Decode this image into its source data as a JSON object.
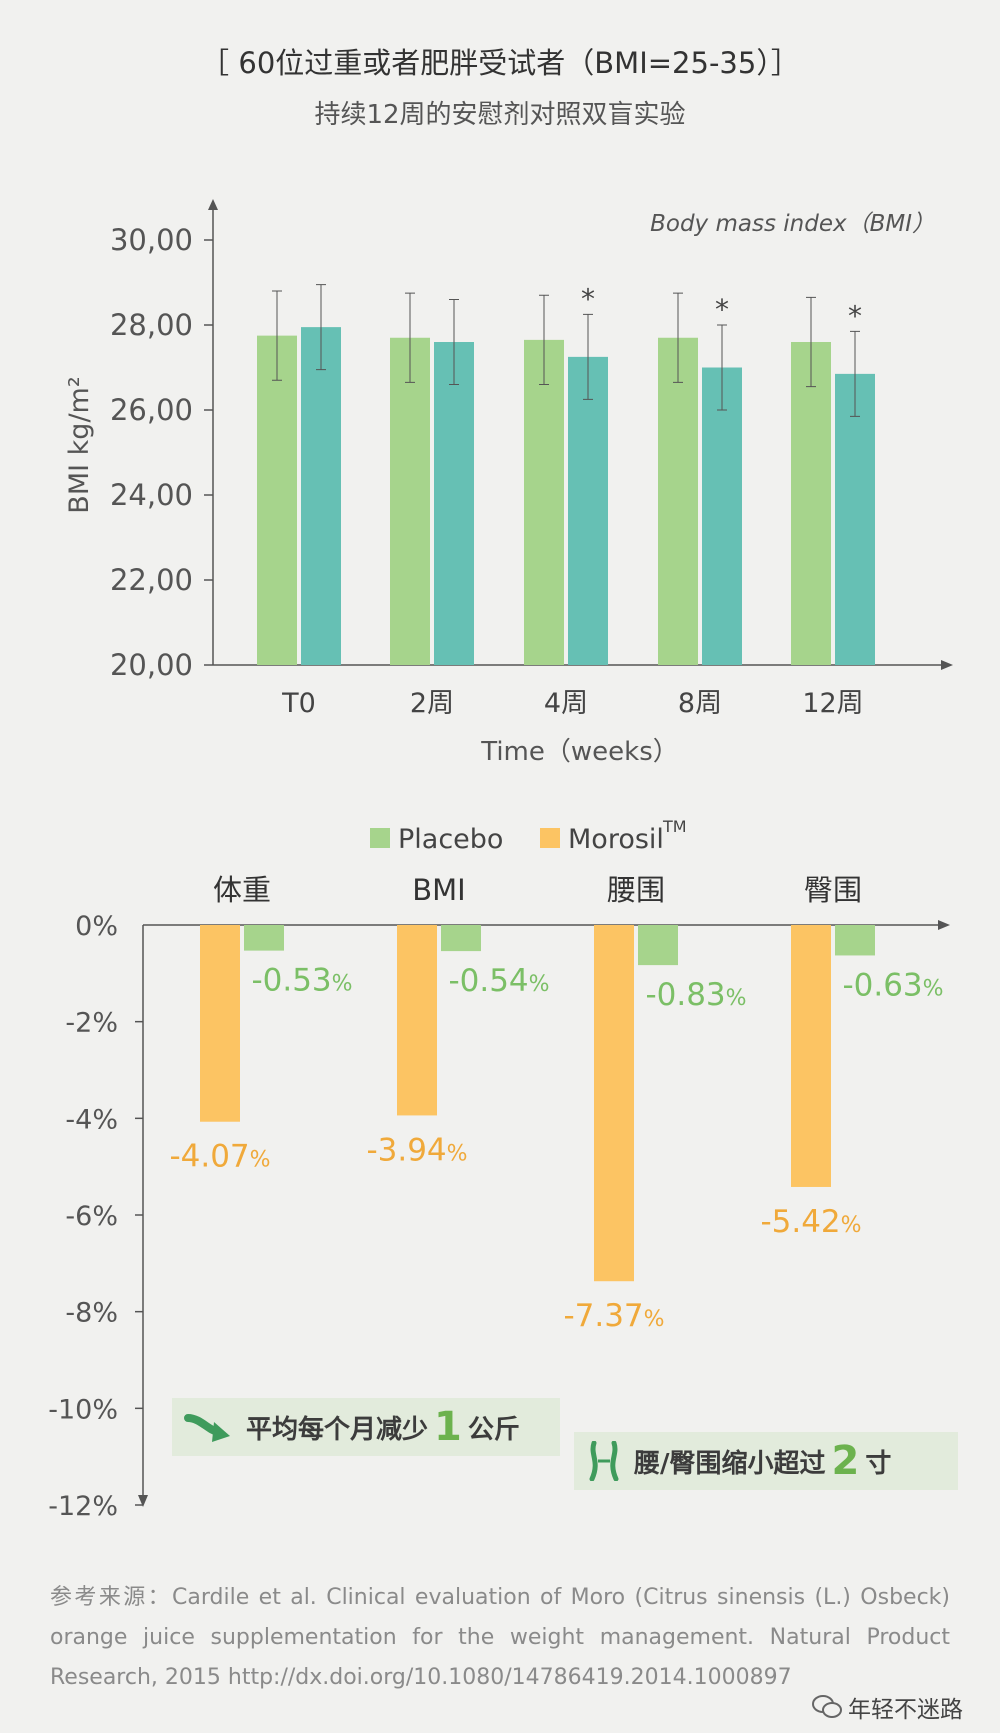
{
  "header": {
    "title": "［ 60位过重或者肥胖受试者（BMI=25-35）］",
    "subtitle": "持续12周的安慰剂对照双盲实验"
  },
  "chart_data": [
    {
      "type": "bar",
      "title": "Body mass index（BMI）",
      "ylabel": "BMI kg/m²",
      "xlabel": "Time（weeks）",
      "categories": [
        "T0",
        "2周",
        "4周",
        "8周",
        "12周"
      ],
      "ylim": [
        20,
        30
      ],
      "yticks": [
        "20,00",
        "22,00",
        "24,00",
        "26,00",
        "28,00",
        "30,00"
      ],
      "series": [
        {
          "values": [
            27.75,
            27.7,
            27.65,
            27.7,
            27.6
          ],
          "errors": [
            1.05,
            1.05,
            1.05,
            1.05,
            1.05
          ],
          "color": "#a6d48c"
        },
        {
          "values": [
            27.95,
            27.6,
            27.25,
            27.0,
            26.85
          ],
          "errors": [
            1.0,
            1.0,
            1.0,
            1.0,
            1.0
          ],
          "color": "#66c0b4"
        }
      ],
      "significance": [
        "",
        "",
        "*",
        "*",
        "*"
      ],
      "grid": false
    },
    {
      "type": "bar",
      "categories": [
        "体重",
        "BMI",
        "腰围",
        "臀围"
      ],
      "ylim": [
        -12,
        0
      ],
      "yticks": [
        "0%",
        "-2%",
        "-4%",
        "-6%",
        "-8%",
        "-10%",
        "-12%"
      ],
      "legend_position": "top",
      "series": [
        {
          "name": "Morosil™",
          "values": [
            -4.07,
            -3.94,
            -7.37,
            -5.42
          ],
          "labels": [
            "-4.07",
            "-3.94",
            "-7.37",
            "-5.42"
          ],
          "color": "#fcc463"
        },
        {
          "name": "Placebo",
          "values": [
            -0.53,
            -0.54,
            -0.83,
            -0.63
          ],
          "labels": [
            "-0.53",
            "-0.54",
            "-0.83",
            "-0.63"
          ],
          "color": "#a6d48c"
        }
      ],
      "grid": false
    }
  ],
  "legend": {
    "placebo": "Placebo",
    "morosil": "Morosil",
    "morosil_tm": "TM"
  },
  "percent_sign": "%",
  "callouts": [
    {
      "text": "平均每个月减少",
      "value": "1",
      "unit": "公斤"
    },
    {
      "text": "腰/臀围缩小超过",
      "value": "2",
      "unit": "寸"
    }
  ],
  "source": "参考来源：Cardile et al. Clinical evaluation of Moro (Citrus sinensis (L.) Osbeck) orange juice supplementation for the weight management. Natural Product Research, 2015 http://dx.doi.org/10.1080/14786419.2014.1000897",
  "wechat": "年轻不迷路",
  "colors": {
    "placebo": "#a6d48c",
    "morosil": "#66c0b4",
    "morosil_pct": "#fcc463",
    "accent_green": "#6cb24e"
  }
}
